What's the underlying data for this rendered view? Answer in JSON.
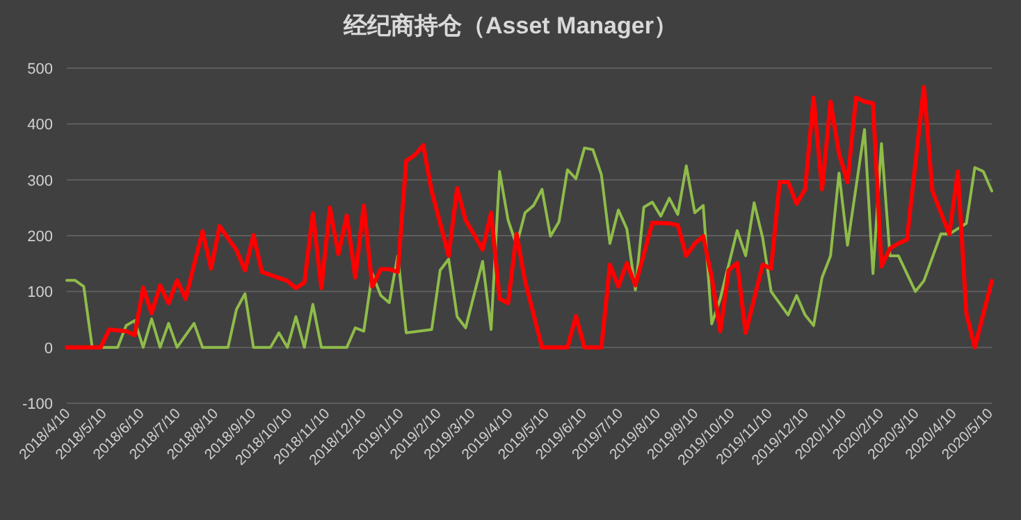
{
  "chart_data": {
    "type": "line",
    "title": "经纪商持仓（Asset Manager）",
    "xlim": [
      "2018-04-10",
      "2020-05-12"
    ],
    "ylim": [
      -100,
      500
    ],
    "yticks": [
      -100,
      0,
      100,
      200,
      300,
      400,
      500
    ],
    "grid": "y",
    "xticks": [
      {
        "value": "2018-04-10",
        "label": "2018/4/10"
      },
      {
        "value": "2018-05-10",
        "label": "2018/5/10"
      },
      {
        "value": "2018-06-10",
        "label": "2018/6/10"
      },
      {
        "value": "2018-07-10",
        "label": "2018/7/10"
      },
      {
        "value": "2018-08-10",
        "label": "2018/8/10"
      },
      {
        "value": "2018-09-10",
        "label": "2018/9/10"
      },
      {
        "value": "2018-10-10",
        "label": "2018/10/10"
      },
      {
        "value": "2018-11-10",
        "label": "2018/11/10"
      },
      {
        "value": "2018-12-10",
        "label": "2018/12/10"
      },
      {
        "value": "2019-01-10",
        "label": "2019/1/10"
      },
      {
        "value": "2019-02-10",
        "label": "2019/2/10"
      },
      {
        "value": "2019-03-10",
        "label": "2019/3/10"
      },
      {
        "value": "2019-04-10",
        "label": "2019/4/10"
      },
      {
        "value": "2019-05-10",
        "label": "2019/5/10"
      },
      {
        "value": "2019-06-10",
        "label": "2019/6/10"
      },
      {
        "value": "2019-07-10",
        "label": "2019/7/10"
      },
      {
        "value": "2019-08-10",
        "label": "2019/8/10"
      },
      {
        "value": "2019-09-10",
        "label": "2019/9/10"
      },
      {
        "value": "2019-10-10",
        "label": "2019/10/10"
      },
      {
        "value": "2019-11-10",
        "label": "2019/11/10"
      },
      {
        "value": "2019-12-10",
        "label": "2019/12/10"
      },
      {
        "value": "2020-01-10",
        "label": "2020/1/10"
      },
      {
        "value": "2020-02-10",
        "label": "2020/2/10"
      },
      {
        "value": "2020-03-10",
        "label": "2020/3/10"
      },
      {
        "value": "2020-04-10",
        "label": "2020/4/10"
      },
      {
        "value": "2020-05-10",
        "label": "2020/5/10"
      }
    ],
    "series": [
      {
        "color": "#8fbc4a",
        "x": [
          "2018-04-10",
          "2018-04-17",
          "2018-04-24",
          "2018-05-01",
          "2018-05-22",
          "2018-05-29",
          "2018-06-05",
          "2018-06-12",
          "2018-06-19",
          "2018-06-26",
          "2018-07-03",
          "2018-07-10",
          "2018-07-24",
          "2018-07-31",
          "2018-08-21",
          "2018-08-28",
          "2018-09-04",
          "2018-09-11",
          "2018-09-25",
          "2018-10-02",
          "2018-10-09",
          "2018-10-16",
          "2018-10-23",
          "2018-10-30",
          "2018-11-06",
          "2018-11-13",
          "2018-11-27",
          "2018-12-04",
          "2018-12-11",
          "2018-12-18",
          "2018-12-25",
          "2019-01-01",
          "2019-01-08",
          "2019-01-15",
          "2019-02-05",
          "2019-02-12",
          "2019-02-19",
          "2019-02-26",
          "2019-03-05",
          "2019-03-19",
          "2019-03-26",
          "2019-04-02",
          "2019-04-09",
          "2019-04-16",
          "2019-04-23",
          "2019-04-30",
          "2019-05-07",
          "2019-05-14",
          "2019-05-21",
          "2019-05-28",
          "2019-06-04",
          "2019-06-11",
          "2019-06-18",
          "2019-06-25",
          "2019-07-02",
          "2019-07-09",
          "2019-07-16",
          "2019-07-23",
          "2019-07-30",
          "2019-08-06",
          "2019-08-13",
          "2019-08-20",
          "2019-08-27",
          "2019-09-03",
          "2019-09-10",
          "2019-09-17",
          "2019-09-24",
          "2019-10-01",
          "2019-10-15",
          "2019-10-22",
          "2019-10-29",
          "2019-11-05",
          "2019-11-12",
          "2019-11-26",
          "2019-12-03",
          "2019-12-10",
          "2019-12-17",
          "2019-12-24",
          "2019-12-31",
          "2020-01-07",
          "2020-01-14",
          "2020-01-28",
          "2020-02-04",
          "2020-02-11",
          "2020-02-18",
          "2020-02-25",
          "2020-03-10",
          "2020-03-17",
          "2020-03-31",
          "2020-04-07",
          "2020-04-21",
          "2020-04-28",
          "2020-05-05",
          "2020-05-12"
        ],
        "values": [
          120,
          120,
          109,
          0,
          0,
          39,
          48,
          0,
          51,
          0,
          43,
          0,
          43,
          0,
          0,
          68,
          96,
          0,
          0,
          26,
          0,
          55,
          0,
          77,
          0,
          0,
          0,
          35,
          29,
          132,
          93,
          80,
          164,
          26,
          32,
          138,
          158,
          55,
          35,
          154,
          32,
          315,
          228,
          183,
          241,
          254,
          283,
          199,
          225,
          318,
          302,
          357,
          354,
          309,
          186,
          246,
          212,
          103,
          251,
          260,
          235,
          267,
          238,
          325,
          241,
          254,
          42,
          87,
          209,
          164,
          259,
          196,
          100,
          58,
          93,
          58,
          39,
          125,
          164,
          312,
          183,
          390,
          132,
          365,
          164,
          164,
          100,
          119,
          203,
          203,
          222,
          322,
          315,
          280
        ]
      },
      {
        "color": "#ff0000",
        "x": [
          "2018-04-10",
          "2018-05-08",
          "2018-05-15",
          "2018-05-29",
          "2018-06-05",
          "2018-06-12",
          "2018-06-19",
          "2018-06-26",
          "2018-07-03",
          "2018-07-10",
          "2018-07-17",
          "2018-07-31",
          "2018-08-07",
          "2018-08-14",
          "2018-08-28",
          "2018-09-04",
          "2018-09-11",
          "2018-09-18",
          "2018-10-09",
          "2018-10-16",
          "2018-10-23",
          "2018-10-30",
          "2018-11-06",
          "2018-11-13",
          "2018-11-20",
          "2018-11-27",
          "2018-12-04",
          "2018-12-11",
          "2018-12-18",
          "2018-12-25",
          "2019-01-01",
          "2019-01-08",
          "2019-01-15",
          "2019-01-22",
          "2019-01-29",
          "2019-02-05",
          "2019-02-19",
          "2019-02-26",
          "2019-03-05",
          "2019-03-19",
          "2019-03-26",
          "2019-04-02",
          "2019-04-09",
          "2019-04-16",
          "2019-04-23",
          "2019-05-07",
          "2019-05-28",
          "2019-06-04",
          "2019-06-11",
          "2019-06-25",
          "2019-07-02",
          "2019-07-09",
          "2019-07-16",
          "2019-07-23",
          "2019-08-06",
          "2019-08-20",
          "2019-08-27",
          "2019-09-03",
          "2019-09-10",
          "2019-09-17",
          "2019-09-24",
          "2019-10-01",
          "2019-10-08",
          "2019-10-15",
          "2019-10-22",
          "2019-10-29",
          "2019-11-05",
          "2019-11-12",
          "2019-11-19",
          "2019-11-26",
          "2019-12-03",
          "2019-12-10",
          "2019-12-17",
          "2019-12-24",
          "2019-12-31",
          "2020-01-07",
          "2020-01-14",
          "2020-01-21",
          "2020-01-28",
          "2020-02-04",
          "2020-02-11",
          "2020-02-18",
          "2020-02-25",
          "2020-03-03",
          "2020-03-17",
          "2020-03-24",
          "2020-04-07",
          "2020-04-14",
          "2020-04-21",
          "2020-04-28",
          "2020-05-12"
        ],
        "values": [
          0,
          0,
          32,
          29,
          22,
          107,
          61,
          111,
          79,
          120,
          87,
          208,
          141,
          217,
          174,
          138,
          201,
          135,
          119,
          106,
          116,
          240,
          106,
          250,
          167,
          236,
          125,
          254,
          109,
          140,
          140,
          135,
          334,
          344,
          362,
          280,
          164,
          285,
          228,
          175,
          241,
          87,
          79,
          203,
          119,
          0,
          0,
          56,
          0,
          0,
          148,
          109,
          151,
          111,
          223,
          222,
          219,
          164,
          186,
          199,
          125,
          29,
          138,
          151,
          26,
          87,
          148,
          141,
          296,
          296,
          257,
          283,
          447,
          283,
          440,
          347,
          296,
          447,
          440,
          437,
          145,
          177,
          186,
          193,
          466,
          280,
          203,
          315,
          61,
          0,
          119
        ]
      }
    ]
  }
}
